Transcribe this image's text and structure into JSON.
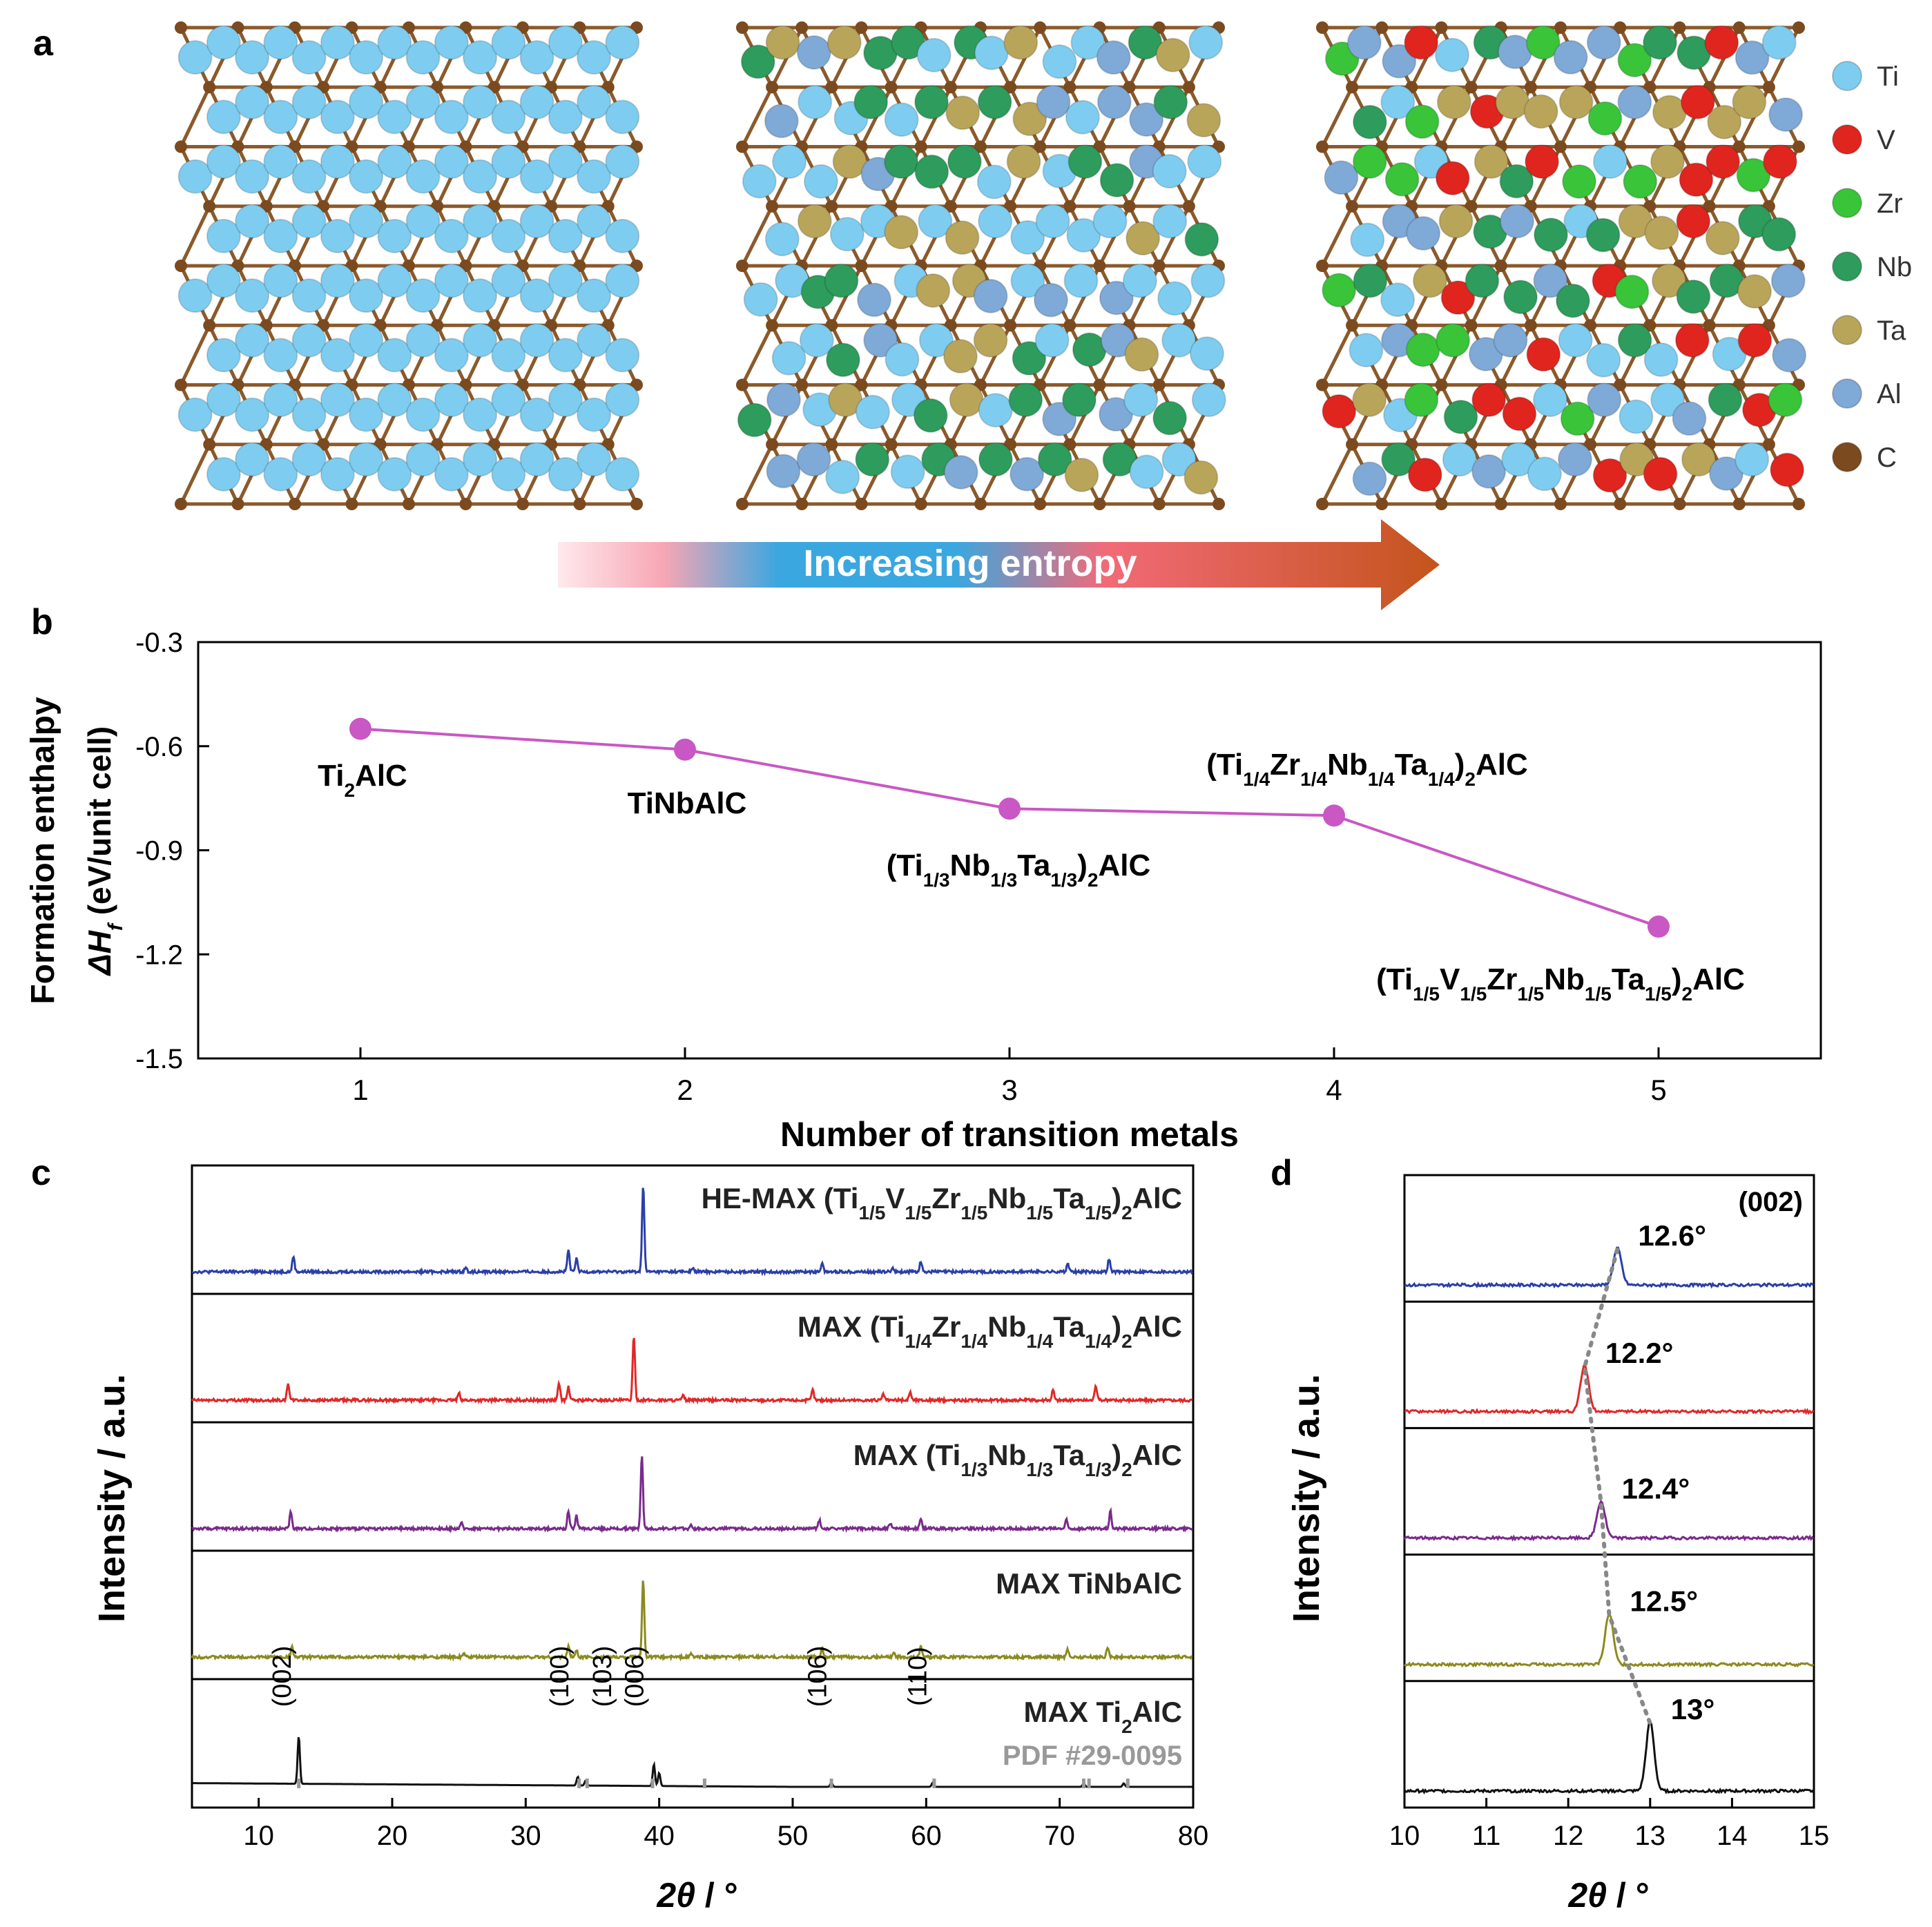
{
  "panels": {
    "a": {
      "letter": "a",
      "legend": [
        {
          "label": "Ti",
          "color": "#7ecdf0"
        },
        {
          "label": "V",
          "color": "#e0251f"
        },
        {
          "label": "Zr",
          "color": "#39c43a"
        },
        {
          "label": "Nb",
          "color": "#2e9c5c"
        },
        {
          "label": "Ta",
          "color": "#b9a55a"
        },
        {
          "label": "Al",
          "color": "#7fa9d6"
        },
        {
          "label": "C",
          "color": "#7b4a1e"
        }
      ],
      "arrow_label": "Increasing entropy"
    },
    "b": {
      "letter": "b"
    },
    "c": {
      "letter": "c"
    },
    "d": {
      "letter": "d"
    }
  },
  "chart_data": [
    {
      "id": "b",
      "type": "line",
      "xlabel": "Number of transition metals",
      "ylabel_line1": "Formation enthalpy",
      "ylabel_line2": "ΔH_f (eV/unit cell)",
      "xlim": [
        0.5,
        5.5
      ],
      "ylim": [
        -1.5,
        -0.3
      ],
      "xticks": [
        1,
        2,
        3,
        4,
        5
      ],
      "yticks": [
        -1.5,
        -1.2,
        -0.9,
        -0.6,
        -0.3
      ],
      "ytick_labels": [
        "-1.5",
        "-1.2",
        "-0.9",
        "-0.6",
        "-0.3"
      ],
      "line_color": "#c957c4",
      "points": [
        {
          "x": 1,
          "y": -0.55,
          "label": "Ti2AlC"
        },
        {
          "x": 2,
          "y": -0.61,
          "label": "TiNbAlC"
        },
        {
          "x": 3,
          "y": -0.78,
          "label": "(Ti1/3Nb1/3Ta1/3)2AlC"
        },
        {
          "x": 4,
          "y": -0.8,
          "label": "(Ti1/4Zr1/4Nb1/4Ta1/4)2AlC"
        },
        {
          "x": 5,
          "y": -1.12,
          "label": "(Ti1/5V1/5Zr1/5Nb1/5Ta1/5)2AlC"
        }
      ]
    },
    {
      "id": "c",
      "type": "line",
      "xlabel": "2θ / °",
      "ylabel": "Intensity / a.u.",
      "xlim": [
        5,
        80
      ],
      "xticks": [
        10,
        20,
        30,
        40,
        50,
        60,
        70,
        80
      ],
      "series": [
        {
          "name": "HE-MAX (Ti1/5V1/5Zr1/5Nb1/5Ta1/5)2AlC",
          "color": "#2b3fa8",
          "peaks": [
            [
              12.6,
              0.18
            ],
            [
              25.5,
              0.05
            ],
            [
              33.2,
              0.25
            ],
            [
              33.8,
              0.15
            ],
            [
              38.8,
              1.0
            ],
            [
              42.5,
              0.04
            ],
            [
              52.2,
              0.1
            ],
            [
              57.5,
              0.05
            ],
            [
              59.6,
              0.12
            ],
            [
              70.6,
              0.1
            ],
            [
              73.7,
              0.15
            ]
          ]
        },
        {
          "name": "MAX (Ti1/4Zr1/4Nb1/4Ta1/4)2AlC",
          "color": "#e02828",
          "peaks": [
            [
              12.2,
              0.2
            ],
            [
              25.0,
              0.08
            ],
            [
              32.5,
              0.2
            ],
            [
              33.2,
              0.15
            ],
            [
              38.1,
              0.75
            ],
            [
              41.8,
              0.05
            ],
            [
              51.5,
              0.12
            ],
            [
              56.8,
              0.07
            ],
            [
              58.8,
              0.1
            ],
            [
              69.5,
              0.12
            ],
            [
              72.7,
              0.18
            ]
          ]
        },
        {
          "name": "MAX (Ti1/3Nb1/3Ta1/3)2AlC",
          "color": "#7a2a8c",
          "peaks": [
            [
              12.4,
              0.2
            ],
            [
              25.2,
              0.06
            ],
            [
              33.2,
              0.2
            ],
            [
              33.8,
              0.15
            ],
            [
              38.7,
              0.85
            ],
            [
              42.4,
              0.04
            ],
            [
              52.0,
              0.1
            ],
            [
              57.3,
              0.06
            ],
            [
              59.6,
              0.12
            ],
            [
              70.5,
              0.1
            ],
            [
              73.8,
              0.2
            ]
          ]
        },
        {
          "name": "MAX TiNbAlC",
          "color": "#8c8a1e",
          "peaks": [
            [
              12.5,
              0.12
            ],
            [
              25.4,
              0.04
            ],
            [
              33.2,
              0.12
            ],
            [
              33.8,
              0.08
            ],
            [
              38.8,
              0.9
            ],
            [
              42.4,
              0.04
            ],
            [
              52.2,
              0.1
            ],
            [
              57.6,
              0.04
            ],
            [
              59.6,
              0.13
            ],
            [
              70.6,
              0.09
            ],
            [
              73.6,
              0.12
            ]
          ]
        },
        {
          "name": "MAX Ti2AlC",
          "color": "#111111",
          "peaks": [
            [
              13.0,
              0.55
            ],
            [
              33.9,
              0.1
            ],
            [
              34.5,
              0.06
            ],
            [
              39.6,
              0.25
            ],
            [
              40.0,
              0.15
            ],
            [
              52.9,
              0.05
            ],
            [
              60.5,
              0.05
            ],
            [
              71.8,
              0.04
            ],
            [
              74.8,
              0.04
            ]
          ]
        }
      ],
      "series_labels": [
        {
          "prefix": "HE-MAX",
          "formula": "(Ti1/5V1/5Zr1/5Nb1/5Ta1/5)2AlC"
        },
        {
          "prefix": "MAX",
          "formula": "(Ti1/4Zr1/4Nb1/4Ta1/4)2AlC"
        },
        {
          "prefix": "MAX",
          "formula": "(Ti1/3Nb1/3Ta1/3)2AlC"
        },
        {
          "prefix": "MAX TiNbAlC",
          "formula": ""
        },
        {
          "prefix": "MAX",
          "formula": "Ti2AlC"
        }
      ],
      "reference_label": "PDF #29-0095",
      "reference_lines": [
        13.0,
        34.0,
        34.6,
        39.5,
        43.4,
        52.9,
        60.6,
        71.8,
        72.2,
        75.1
      ],
      "hkl_labels": [
        {
          "text": "(002)",
          "x": 12.4
        },
        {
          "text": "(100)",
          "x": 33.2
        },
        {
          "text": "(103)",
          "x": 36.4
        },
        {
          "text": "(006)",
          "x": 38.8
        },
        {
          "text": "(106)",
          "x": 52.5
        },
        {
          "text": "(110)",
          "x": 60.0
        }
      ]
    },
    {
      "id": "d",
      "type": "line",
      "xlabel": "2θ / °",
      "ylabel": "Intensity / a.u.",
      "xlim": [
        10,
        15
      ],
      "xticks": [
        10,
        11,
        12,
        13,
        14,
        15
      ],
      "annotation": "(002)",
      "series": [
        {
          "peak_x": 12.6,
          "label": "12.6°",
          "color": "#2b3fa8",
          "height": 0.4
        },
        {
          "peak_x": 12.2,
          "label": "12.2°",
          "color": "#e02828",
          "height": 0.5
        },
        {
          "peak_x": 12.4,
          "label": "12.4°",
          "color": "#7a2a8c",
          "height": 0.4
        },
        {
          "peak_x": 12.5,
          "label": "12.5°",
          "color": "#8c8a1e",
          "height": 0.55
        },
        {
          "peak_x": 13.0,
          "label": "13°",
          "color": "#111111",
          "height": 0.75
        }
      ]
    }
  ]
}
